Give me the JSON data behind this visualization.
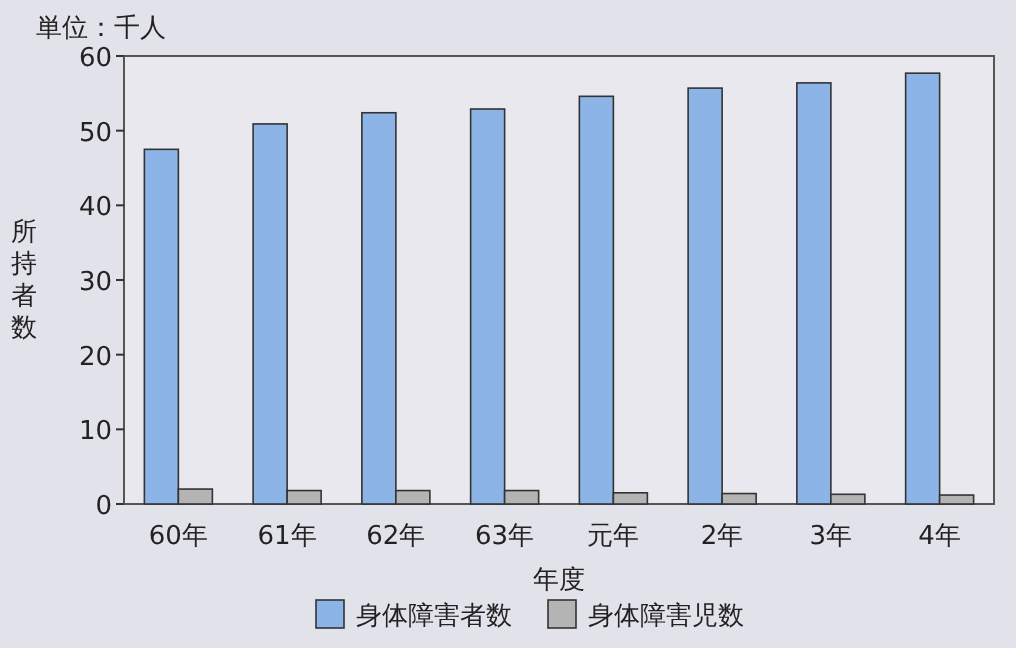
{
  "chart_data": {
    "type": "bar",
    "title": "単位：千人",
    "xlabel": "年度",
    "ylabel": "所持者数",
    "categories": [
      "60年",
      "61年",
      "62年",
      "63年",
      "元年",
      "2年",
      "3年",
      "4年"
    ],
    "series": [
      {
        "name": "身体障害者数",
        "color": "#8cb4e6",
        "values": [
          47.5,
          50.9,
          52.4,
          52.9,
          54.6,
          55.7,
          56.4,
          57.7
        ]
      },
      {
        "name": "身体障害児数",
        "color": "#b4b4b4",
        "values": [
          2.0,
          1.8,
          1.8,
          1.8,
          1.5,
          1.4,
          1.3,
          1.2
        ]
      }
    ],
    "ylim": [
      0,
      60
    ],
    "yticks": [
      0,
      10,
      20,
      30,
      40,
      50,
      60
    ],
    "grid": false,
    "legend": "bottom"
  }
}
